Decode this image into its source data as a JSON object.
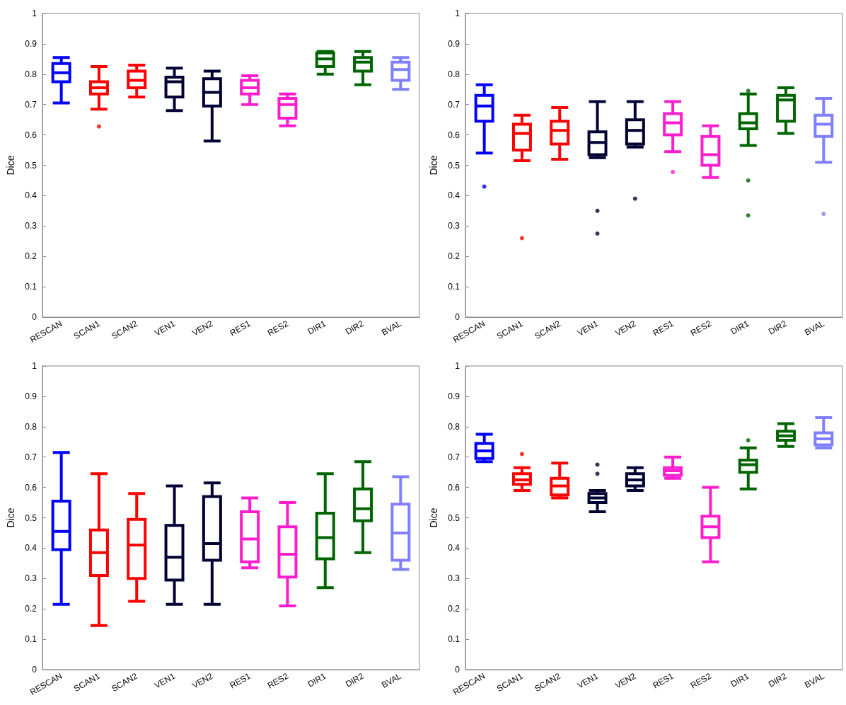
{
  "chart_data": [
    {
      "type": "box",
      "ylabel": "Dice",
      "categories": [
        "RESCAN",
        "SCAN1",
        "SCAN2",
        "VEN1",
        "VEN2",
        "RES1",
        "RES2",
        "DIR1",
        "DIR2",
        "BVAL"
      ],
      "colors": [
        "#0000ff",
        "#ff0000",
        "#ff0000",
        "#000033",
        "#000033",
        "#ff1dce",
        "#ff1dce",
        "#006400",
        "#006400",
        "#8080ff"
      ],
      "ylim": [
        0,
        1
      ],
      "yticks": [
        0,
        0.1,
        0.2,
        0.3,
        0.4,
        0.5,
        0.6,
        0.7,
        0.8,
        0.9,
        1
      ],
      "grid": false,
      "boxes": [
        {
          "low": 0.705,
          "q1": 0.775,
          "median": 0.805,
          "q3": 0.835,
          "high": 0.855
        },
        {
          "low": 0.685,
          "q1": 0.735,
          "median": 0.755,
          "q3": 0.775,
          "high": 0.825,
          "outliers": [
            0.628
          ]
        },
        {
          "low": 0.725,
          "q1": 0.755,
          "median": 0.78,
          "q3": 0.81,
          "high": 0.83
        },
        {
          "low": 0.68,
          "q1": 0.725,
          "median": 0.775,
          "q3": 0.79,
          "high": 0.82
        },
        {
          "low": 0.58,
          "q1": 0.695,
          "median": 0.74,
          "q3": 0.785,
          "high": 0.81
        },
        {
          "low": 0.7,
          "q1": 0.735,
          "median": 0.755,
          "q3": 0.78,
          "high": 0.795
        },
        {
          "low": 0.63,
          "q1": 0.655,
          "median": 0.7,
          "q3": 0.72,
          "high": 0.735
        },
        {
          "low": 0.8,
          "q1": 0.825,
          "median": 0.85,
          "q3": 0.87,
          "high": 0.875
        },
        {
          "low": 0.765,
          "q1": 0.81,
          "median": 0.84,
          "q3": 0.855,
          "high": 0.875
        },
        {
          "low": 0.75,
          "q1": 0.78,
          "median": 0.815,
          "q3": 0.84,
          "high": 0.855
        }
      ]
    },
    {
      "type": "box",
      "ylabel": "Dice",
      "categories": [
        "RESCAN",
        "SCAN1",
        "SCAN2",
        "VEN1",
        "VEN2",
        "RES1",
        "RES2",
        "DIR1",
        "DIR2",
        "BVAL"
      ],
      "colors": [
        "#0000ff",
        "#ff0000",
        "#ff0000",
        "#000033",
        "#000033",
        "#ff1dce",
        "#ff1dce",
        "#006400",
        "#006400",
        "#8080ff"
      ],
      "ylim": [
        0,
        1
      ],
      "yticks": [
        0,
        0.1,
        0.2,
        0.3,
        0.4,
        0.5,
        0.6,
        0.7,
        0.8,
        0.9,
        1
      ],
      "grid": false,
      "boxes": [
        {
          "low": 0.54,
          "q1": 0.645,
          "median": 0.695,
          "q3": 0.73,
          "high": 0.765,
          "outliers": [
            0.43
          ]
        },
        {
          "low": 0.515,
          "q1": 0.55,
          "median": 0.605,
          "q3": 0.635,
          "high": 0.665,
          "outliers": [
            0.26
          ]
        },
        {
          "low": 0.52,
          "q1": 0.57,
          "median": 0.615,
          "q3": 0.645,
          "high": 0.69
        },
        {
          "low": 0.525,
          "q1": 0.535,
          "median": 0.575,
          "q3": 0.61,
          "high": 0.71,
          "outliers": [
            0.35,
            0.275
          ]
        },
        {
          "low": 0.56,
          "q1": 0.57,
          "median": 0.615,
          "q3": 0.65,
          "high": 0.71,
          "outliers": [
            0.39
          ]
        },
        {
          "low": 0.545,
          "q1": 0.6,
          "median": 0.64,
          "q3": 0.67,
          "high": 0.71,
          "outliers": [
            0.478
          ]
        },
        {
          "low": 0.46,
          "q1": 0.5,
          "median": 0.535,
          "q3": 0.595,
          "high": 0.63
        },
        {
          "low": 0.565,
          "q1": 0.62,
          "median": 0.64,
          "q3": 0.67,
          "high": 0.735,
          "outliers": [
            0.745,
            0.45,
            0.335
          ]
        },
        {
          "low": 0.605,
          "q1": 0.645,
          "median": 0.715,
          "q3": 0.73,
          "high": 0.755
        },
        {
          "low": 0.51,
          "q1": 0.595,
          "median": 0.635,
          "q3": 0.665,
          "high": 0.72,
          "outliers": [
            0.34
          ]
        }
      ]
    },
    {
      "type": "box",
      "ylabel": "Dice",
      "categories": [
        "RESCAN",
        "SCAN1",
        "SCAN2",
        "VEN1",
        "VEN2",
        "RES1",
        "RES2",
        "DIR1",
        "DIR2",
        "BVAL"
      ],
      "colors": [
        "#0000ff",
        "#ff0000",
        "#ff0000",
        "#000033",
        "#000033",
        "#ff1dce",
        "#ff1dce",
        "#006400",
        "#006400",
        "#8080ff"
      ],
      "ylim": [
        0,
        1
      ],
      "yticks": [
        0,
        0.1,
        0.2,
        0.3,
        0.4,
        0.5,
        0.6,
        0.7,
        0.8,
        0.9,
        1
      ],
      "grid": false,
      "boxes": [
        {
          "low": 0.215,
          "q1": 0.395,
          "median": 0.455,
          "q3": 0.555,
          "high": 0.715
        },
        {
          "low": 0.145,
          "q1": 0.31,
          "median": 0.385,
          "q3": 0.46,
          "high": 0.645
        },
        {
          "low": 0.225,
          "q1": 0.3,
          "median": 0.41,
          "q3": 0.495,
          "high": 0.58
        },
        {
          "low": 0.215,
          "q1": 0.295,
          "median": 0.37,
          "q3": 0.475,
          "high": 0.605
        },
        {
          "low": 0.215,
          "q1": 0.36,
          "median": 0.415,
          "q3": 0.57,
          "high": 0.615
        },
        {
          "low": 0.335,
          "q1": 0.355,
          "median": 0.43,
          "q3": 0.52,
          "high": 0.565
        },
        {
          "low": 0.21,
          "q1": 0.305,
          "median": 0.38,
          "q3": 0.47,
          "high": 0.55
        },
        {
          "low": 0.27,
          "q1": 0.365,
          "median": 0.435,
          "q3": 0.515,
          "high": 0.645
        },
        {
          "low": 0.385,
          "q1": 0.49,
          "median": 0.53,
          "q3": 0.595,
          "high": 0.685
        },
        {
          "low": 0.33,
          "q1": 0.36,
          "median": 0.45,
          "q3": 0.545,
          "high": 0.635
        }
      ]
    },
    {
      "type": "box",
      "ylabel": "Dice",
      "categories": [
        "RESCAN",
        "SCAN1",
        "SCAN2",
        "VEN1",
        "VEN2",
        "RES1",
        "RES2",
        "DIR1",
        "DIR2",
        "BVAL"
      ],
      "colors": [
        "#0000ff",
        "#ff0000",
        "#ff0000",
        "#000033",
        "#000033",
        "#ff1dce",
        "#ff1dce",
        "#006400",
        "#006400",
        "#8080ff"
      ],
      "ylim": [
        0,
        1
      ],
      "yticks": [
        0,
        0.1,
        0.2,
        0.3,
        0.4,
        0.5,
        0.6,
        0.7,
        0.8,
        0.9,
        1
      ],
      "grid": false,
      "boxes": [
        {
          "low": 0.685,
          "q1": 0.695,
          "median": 0.72,
          "q3": 0.745,
          "high": 0.775
        },
        {
          "low": 0.59,
          "q1": 0.61,
          "median": 0.625,
          "q3": 0.645,
          "high": 0.665,
          "outliers": [
            0.71
          ]
        },
        {
          "low": 0.565,
          "q1": 0.575,
          "median": 0.605,
          "q3": 0.63,
          "high": 0.68
        },
        {
          "low": 0.52,
          "q1": 0.55,
          "median": 0.565,
          "q3": 0.58,
          "high": 0.59,
          "outliers": [
            0.675,
            0.645
          ]
        },
        {
          "low": 0.59,
          "q1": 0.605,
          "median": 0.625,
          "q3": 0.645,
          "high": 0.665
        },
        {
          "low": 0.63,
          "q1": 0.64,
          "median": 0.655,
          "q3": 0.665,
          "high": 0.7
        },
        {
          "low": 0.355,
          "q1": 0.435,
          "median": 0.47,
          "q3": 0.505,
          "high": 0.6
        },
        {
          "low": 0.595,
          "q1": 0.65,
          "median": 0.675,
          "q3": 0.69,
          "high": 0.73,
          "outliers": [
            0.755
          ]
        },
        {
          "low": 0.735,
          "q1": 0.755,
          "median": 0.77,
          "q3": 0.785,
          "high": 0.81
        },
        {
          "low": 0.73,
          "q1": 0.74,
          "median": 0.76,
          "q3": 0.78,
          "high": 0.83
        }
      ]
    }
  ]
}
